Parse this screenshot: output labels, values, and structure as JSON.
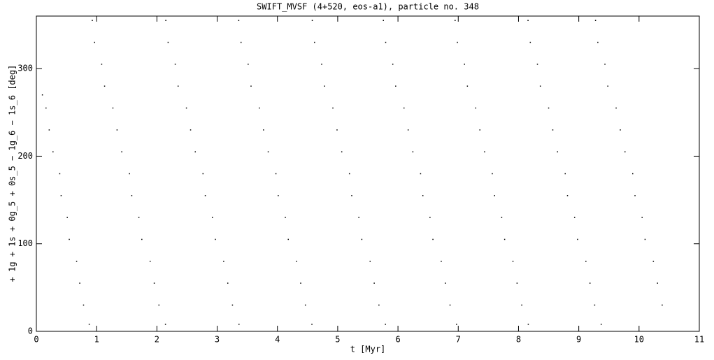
{
  "chart_data": {
    "type": "scatter",
    "title": "SWIFT_MVSF (4+520, eos-a1), particle no. 348",
    "x_label": "t [Myr]",
    "y_label": "+ 1g + 1s + 0g_5 + 0s_5 − 1g_6 − 1s_6 [deg]",
    "color": "#000000",
    "xlim": [
      0,
      11
    ],
    "ylim": [
      0,
      360
    ],
    "xticks": [
      0,
      1,
      2,
      3,
      4,
      5,
      6,
      7,
      8,
      9,
      10,
      11
    ],
    "yticks": [
      0,
      100,
      200,
      300
    ],
    "x": [
      0.1,
      0.16,
      0.213,
      0.276,
      0.388,
      0.411,
      0.513,
      0.546,
      0.668,
      0.72,
      0.783,
      0.877,
      0.928,
      0.966,
      1.084,
      1.132,
      1.27,
      1.339,
      1.417,
      1.545,
      1.583,
      1.701,
      1.75,
      1.888,
      1.956,
      2.034,
      2.142,
      2.148,
      2.186,
      2.304,
      2.352,
      2.49,
      2.559,
      2.637,
      2.765,
      2.803,
      2.921,
      2.97,
      3.108,
      3.176,
      3.254,
      3.362,
      3.358,
      3.396,
      3.514,
      3.562,
      3.7,
      3.769,
      3.847,
      3.975,
      4.013,
      4.131,
      4.18,
      4.318,
      4.386,
      4.464,
      4.572,
      4.578,
      4.616,
      4.734,
      4.782,
      4.92,
      4.989,
      5.067,
      5.195,
      5.233,
      5.351,
      5.4,
      5.538,
      5.606,
      5.684,
      5.792,
      5.758,
      5.796,
      5.914,
      5.962,
      6.1,
      6.169,
      6.247,
      6.375,
      6.413,
      6.531,
      6.58,
      6.718,
      6.786,
      6.864,
      6.972,
      6.948,
      6.986,
      7.104,
      7.152,
      7.29,
      7.359,
      7.437,
      7.565,
      7.603,
      7.721,
      7.77,
      7.908,
      7.976,
      8.054,
      8.162,
      8.158,
      8.196,
      8.314,
      8.362,
      8.5,
      8.569,
      8.647,
      8.775,
      8.813,
      8.931,
      8.98,
      9.118,
      9.186,
      9.264,
      9.372,
      9.278,
      9.316,
      9.434,
      9.482,
      9.62,
      9.689,
      9.767,
      9.895,
      9.933,
      10.051,
      10.1,
      10.238,
      10.306,
      10.384
    ],
    "values": [
      270,
      255,
      230,
      205,
      180,
      155,
      130,
      105,
      80,
      55,
      30,
      8,
      355,
      330,
      305,
      280,
      255,
      230,
      205,
      180,
      155,
      130,
      105,
      80,
      55,
      30,
      8,
      355,
      330,
      305,
      280,
      255,
      230,
      205,
      180,
      155,
      130,
      105,
      80,
      55,
      30,
      8,
      355,
      330,
      305,
      280,
      255,
      230,
      205,
      180,
      155,
      130,
      105,
      80,
      55,
      30,
      8,
      355,
      330,
      305,
      280,
      255,
      230,
      205,
      180,
      155,
      130,
      105,
      80,
      55,
      30,
      8,
      355,
      330,
      305,
      280,
      255,
      230,
      205,
      180,
      155,
      130,
      105,
      80,
      55,
      30,
      8,
      355,
      330,
      305,
      280,
      255,
      230,
      205,
      180,
      155,
      130,
      105,
      80,
      55,
      30,
      8,
      355,
      330,
      305,
      280,
      255,
      230,
      205,
      180,
      155,
      130,
      105,
      80,
      55,
      30,
      8,
      355,
      330,
      305,
      280,
      255,
      230,
      205,
      180,
      155,
      130,
      105,
      80,
      55,
      30
    ]
  }
}
